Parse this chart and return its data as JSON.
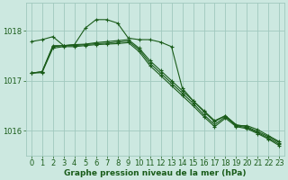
{
  "title": "Graphe pression niveau de la mer (hPa)",
  "bg_color": "#cce8e0",
  "grid_color": "#a0c8be",
  "line_color": "#1a5c1a",
  "x_values": [
    0,
    1,
    2,
    3,
    4,
    5,
    6,
    7,
    8,
    9,
    10,
    11,
    12,
    13,
    14,
    15,
    16,
    17,
    18,
    19,
    20,
    21,
    22,
    23
  ],
  "series": [
    [
      1017.78,
      1017.82,
      1017.88,
      1017.7,
      1017.72,
      1018.05,
      1018.22,
      1018.22,
      1018.15,
      1017.85,
      1017.82,
      1017.82,
      1017.77,
      1017.68,
      1016.85,
      1016.6,
      1016.4,
      1016.2,
      1016.3,
      1016.1,
      1016.1,
      1016.02,
      1015.9,
      1015.78
    ],
    [
      1017.15,
      1017.18,
      1017.7,
      1017.7,
      1017.72,
      1017.73,
      1017.76,
      1017.78,
      1017.8,
      1017.82,
      1017.65,
      1017.4,
      1017.2,
      1017.0,
      1016.8,
      1016.6,
      1016.38,
      1016.18,
      1016.3,
      1016.12,
      1016.08,
      1015.98,
      1015.88,
      1015.76
    ],
    [
      1017.15,
      1017.18,
      1017.68,
      1017.7,
      1017.7,
      1017.72,
      1017.74,
      1017.75,
      1017.77,
      1017.79,
      1017.62,
      1017.35,
      1017.15,
      1016.95,
      1016.75,
      1016.55,
      1016.32,
      1016.12,
      1016.28,
      1016.1,
      1016.06,
      1015.96,
      1015.85,
      1015.73
    ],
    [
      1017.15,
      1017.16,
      1017.65,
      1017.68,
      1017.68,
      1017.7,
      1017.72,
      1017.73,
      1017.74,
      1017.76,
      1017.58,
      1017.3,
      1017.1,
      1016.9,
      1016.7,
      1016.5,
      1016.28,
      1016.08,
      1016.25,
      1016.08,
      1016.04,
      1015.94,
      1015.83,
      1015.7
    ]
  ],
  "ylim": [
    1015.5,
    1018.55
  ],
  "yticks": [
    1016,
    1017,
    1018
  ],
  "xlim": [
    -0.5,
    23.5
  ],
  "xticks": [
    0,
    1,
    2,
    3,
    4,
    5,
    6,
    7,
    8,
    9,
    10,
    11,
    12,
    13,
    14,
    15,
    16,
    17,
    18,
    19,
    20,
    21,
    22,
    23
  ],
  "tick_fontsize": 6,
  "title_fontsize": 6.5,
  "marker_size": 3.5,
  "linewidth": 0.8
}
